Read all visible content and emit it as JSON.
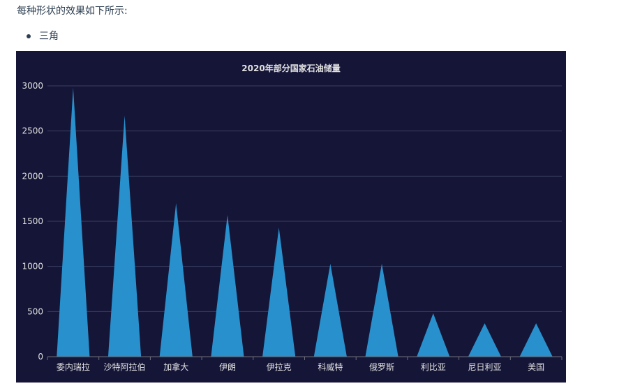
{
  "page": {
    "intro_text": "每种形状的效果如下所示:",
    "bullet_label": "三角"
  },
  "chart_data": {
    "type": "bar",
    "shape": "triangle",
    "title": "2020年部分国家石油储量",
    "categories": [
      "委内瑞拉",
      "沙特阿拉伯",
      "加拿大",
      "伊朗",
      "伊拉克",
      "科威特",
      "俄罗斯",
      "利比亚",
      "尼日利亚",
      "美国"
    ],
    "values": [
      2980,
      2670,
      1700,
      1570,
      1430,
      1030,
      1030,
      480,
      370,
      370
    ],
    "ylim": [
      0,
      3000
    ],
    "yticks": [
      0,
      500,
      1000,
      1500,
      2000,
      2500,
      3000
    ],
    "xlabel": "",
    "ylabel": "",
    "grid": true,
    "colors": {
      "background": "#151538",
      "bar": "#2891cd",
      "grid": "#3a4060",
      "axis": "#6e7079",
      "text": "#e0e0e0"
    }
  }
}
